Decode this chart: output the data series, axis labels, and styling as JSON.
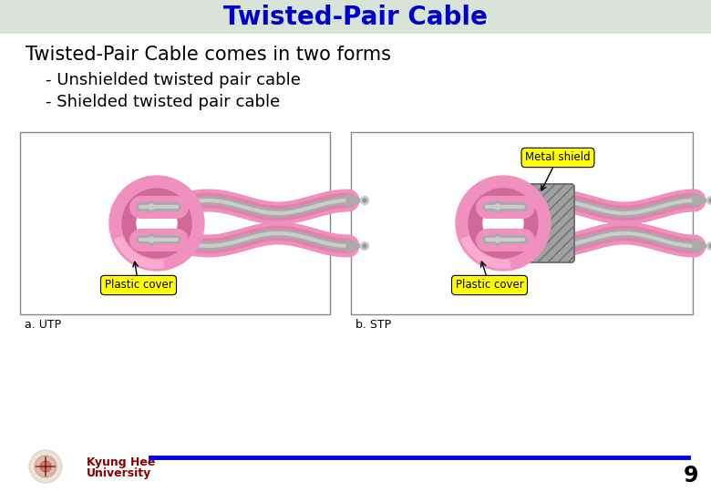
{
  "title": "Twisted-Pair Cable",
  "title_color": "#0000CC",
  "title_bg_color": "#D8E4D8",
  "title_fontsize": 20,
  "main_text": "Twisted-Pair Cable comes in two forms",
  "main_text_fontsize": 15,
  "bullet1": "- Unshielded twisted pair cable",
  "bullet2": "- Shielded twisted pair cable",
  "bullet_fontsize": 13,
  "caption1": "a. UTP",
  "caption2": "b. STP",
  "label_plastic": "Plastic cover",
  "label_metal": "Metal shield",
  "footer_line_color": "#0000EE",
  "footer_text_color": "#8B0000",
  "page_number": "9",
  "bg_color": "#FFFFFF",
  "pink": "#F090BE",
  "pink_dark": "#D06898",
  "gray": "#AAAAAA",
  "gray_dark": "#888888",
  "gray_light": "#CCCCCC",
  "shield_color": "#909090",
  "yellow": "#FFFF00"
}
